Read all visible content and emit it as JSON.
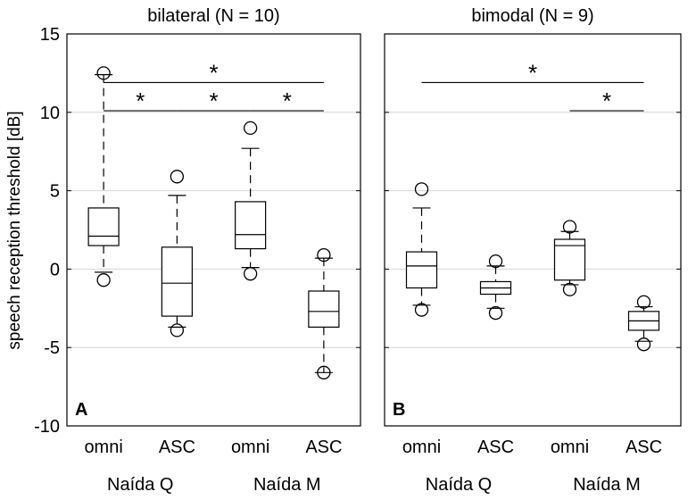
{
  "chart_data": {
    "type": "boxplot",
    "ylabel": "speech reception threshold [dB]",
    "ylim": [
      -10,
      15
    ],
    "yticks": [
      15,
      10,
      5,
      0,
      -5,
      -10
    ],
    "gridlines": [
      10,
      5,
      0,
      -5
    ],
    "categories": [
      "omni",
      "ASC",
      "omni",
      "ASC"
    ],
    "groups": [
      "Naída Q",
      "Naída M"
    ],
    "panels": [
      {
        "letter": "A",
        "title": "bilateral (N = 10)",
        "boxes": [
          {
            "category": "omni",
            "group": "Naída Q",
            "q1": 1.5,
            "median": 2.1,
            "q3": 3.9,
            "whisker_low": -0.2,
            "whisker_high": 12.4,
            "outliers": [
              12.5,
              -0.7
            ]
          },
          {
            "category": "ASC",
            "group": "Naída Q",
            "q1": -3.0,
            "median": -0.9,
            "q3": 1.4,
            "whisker_low": -3.7,
            "whisker_high": 4.7,
            "outliers": [
              5.9,
              -3.9
            ]
          },
          {
            "category": "omni",
            "group": "Naída M",
            "q1": 1.3,
            "median": 2.2,
            "q3": 4.3,
            "whisker_low": 0.1,
            "whisker_high": 7.7,
            "outliers": [
              9.0,
              -0.3
            ]
          },
          {
            "category": "ASC",
            "group": "Naída M",
            "q1": -3.7,
            "median": -2.7,
            "q3": -1.4,
            "whisker_low": -6.6,
            "whisker_high": 0.7,
            "outliers": [
              0.9,
              -6.6
            ]
          }
        ],
        "significance": [
          {
            "from": 1,
            "to": 4,
            "y": 11.9,
            "label": "*"
          },
          {
            "from": 1,
            "to": 2,
            "y": 10.1,
            "label": "*"
          },
          {
            "from": 2,
            "to": 3,
            "y": 10.1,
            "label": "*"
          },
          {
            "from": 3,
            "to": 4,
            "y": 10.1,
            "label": "*"
          }
        ]
      },
      {
        "letter": "B",
        "title": "bimodal (N = 9)",
        "boxes": [
          {
            "category": "omni",
            "group": "Naída Q",
            "q1": -1.2,
            "median": 0.2,
            "q3": 1.1,
            "whisker_low": -2.3,
            "whisker_high": 3.9,
            "outliers": [
              5.1,
              -2.6
            ]
          },
          {
            "category": "ASC",
            "group": "Naída Q",
            "q1": -1.6,
            "median": -1.2,
            "q3": -0.8,
            "whisker_low": -2.5,
            "whisker_high": 0.2,
            "outliers": [
              0.5,
              -2.8
            ]
          },
          {
            "category": "omni",
            "group": "Naída M",
            "q1": -0.7,
            "median": 1.5,
            "q3": 1.9,
            "whisker_low": -1.0,
            "whisker_high": 2.4,
            "outliers": [
              2.7,
              -1.3
            ]
          },
          {
            "category": "ASC",
            "group": "Naída M",
            "q1": -3.9,
            "median": -3.3,
            "q3": -2.7,
            "whisker_low": -4.6,
            "whisker_high": -2.4,
            "outliers": [
              -2.1,
              -4.8
            ]
          }
        ],
        "significance": [
          {
            "from": 1,
            "to": 4,
            "y": 11.9,
            "label": "*"
          },
          {
            "from": 3,
            "to": 4,
            "y": 10.1,
            "label": "*"
          }
        ]
      }
    ]
  }
}
